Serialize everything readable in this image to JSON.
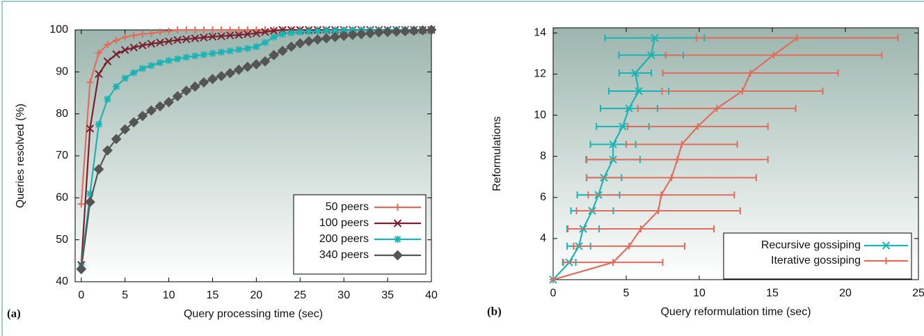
{
  "chart_data": [
    {
      "type": "line",
      "label": "(a)",
      "xlabel": "Query processing time (sec)",
      "ylabel": "Queries resolved (%)",
      "xlim": [
        -0.7,
        40
      ],
      "ylim": [
        40,
        100
      ],
      "xticks": [
        0,
        5,
        10,
        15,
        20,
        25,
        30,
        35,
        40
      ],
      "yticks": [
        40,
        50,
        60,
        70,
        80,
        90,
        100
      ],
      "legend": "lower right",
      "x": [
        0,
        1,
        2,
        3,
        4,
        5,
        6,
        7,
        8,
        9,
        10,
        11,
        12,
        13,
        14,
        15,
        16,
        17,
        18,
        19,
        20,
        21,
        22,
        23,
        24,
        25,
        26,
        27,
        28,
        29,
        30,
        31,
        32,
        33,
        34,
        35,
        36,
        37,
        38,
        39,
        40
      ],
      "series": [
        {
          "name": "50 peers",
          "color": "#e06c5c",
          "marker": "plus",
          "values": [
            58.5,
            87.5,
            94.5,
            96.5,
            97.5,
            98.3,
            98.7,
            99,
            99.2,
            99.5,
            99.7,
            100,
            100,
            100,
            100,
            100,
            100,
            100,
            100,
            100,
            100,
            100,
            100,
            100,
            100,
            100,
            100,
            100,
            100,
            100,
            100,
            100,
            100,
            100,
            100,
            100,
            100,
            100,
            100,
            100,
            100
          ]
        },
        {
          "name": "100 peers",
          "color": "#7a1f2e",
          "marker": "cross",
          "values": [
            44,
            76.5,
            89.5,
            92.5,
            94.2,
            95.2,
            95.8,
            96.3,
            96.7,
            97,
            97.3,
            97.6,
            97.8,
            98,
            98.2,
            98.4,
            98.5,
            98.7,
            98.8,
            99,
            99.2,
            99.5,
            99.8,
            100,
            100,
            100,
            100,
            100,
            100,
            100,
            100,
            100,
            100,
            100,
            100,
            100,
            100,
            100,
            100,
            100,
            100
          ]
        },
        {
          "name": "200 peers",
          "color": "#1ab4b4",
          "marker": "star",
          "values": [
            43.5,
            61,
            77.5,
            83.5,
            86.5,
            88.5,
            89.8,
            90.8,
            91.5,
            92.2,
            92.7,
            93.1,
            93.5,
            93.8,
            94.1,
            94.4,
            94.7,
            95,
            95.3,
            95.6,
            96,
            97,
            98.3,
            99,
            99.3,
            99.5,
            99.6,
            99.7,
            99.8,
            99.8,
            99.9,
            99.9,
            99.9,
            99.9,
            99.9,
            99.9,
            100,
            100,
            100,
            100,
            100
          ]
        },
        {
          "name": "340 peers",
          "color": "#555555",
          "marker": "diamond",
          "values": [
            43,
            59,
            66.8,
            71.3,
            74,
            76.3,
            78,
            79.5,
            80.8,
            81.8,
            82.8,
            84.2,
            85.5,
            86.5,
            87.5,
            88.3,
            89,
            89.7,
            90.5,
            91.2,
            91.8,
            92.5,
            94,
            95,
            96,
            96.8,
            97.3,
            97.7,
            98,
            98.3,
            98.6,
            98.8,
            99,
            99.2,
            99.4,
            99.5,
            99.6,
            99.7,
            99.8,
            99.9,
            100
          ]
        }
      ]
    },
    {
      "type": "line",
      "label": "(b)",
      "xlabel": "Query reformulation time (sec)",
      "ylabel": "Reformulations",
      "xlim": [
        0,
        25
      ],
      "ylim": [
        2,
        14.25
      ],
      "xticks": [
        0,
        5,
        10,
        15,
        20,
        25
      ],
      "yticks": [
        4,
        6,
        8,
        10,
        12,
        14
      ],
      "legend": "lower right",
      "series": [
        {
          "name": "Recursive gossiping",
          "color": "#1ab4b4",
          "marker": "cross",
          "x": [
            0,
            1.1,
            1.76,
            2.05,
            2.67,
            3.1,
            3.48,
            4.1,
            4.1,
            4.76,
            5.19,
            5.86,
            5.62,
            6.71,
            6.95
          ],
          "xerr": [
            0,
            0.45,
            0.8,
            1.1,
            1.45,
            1.45,
            1.2,
            1.85,
            1.55,
            1.8,
            1.95,
            2.05,
            1.1,
            2.2,
            3.4
          ],
          "values": [
            2,
            2.84,
            3.63,
            4.47,
            5.35,
            6.12,
            6.96,
            7.84,
            8.58,
            9.45,
            10.33,
            11.17,
            12.05,
            12.92,
            13.76
          ]
        },
        {
          "name": "Iterative gossiping",
          "color": "#e06c5c",
          "marker": "plus",
          "x": [
            0,
            4.1,
            5.2,
            6,
            7.2,
            7.4,
            8.1,
            8.5,
            8.8,
            9.9,
            11.2,
            12.95,
            13.5,
            15.1,
            16.7
          ],
          "xerr": [
            0,
            3.4,
            3.8,
            5,
            5.6,
            5,
            5.8,
            6.2,
            3.8,
            4.8,
            5.4,
            5.5,
            6,
            7.4,
            6.9
          ],
          "values": [
            2,
            2.84,
            3.63,
            4.47,
            5.35,
            6.12,
            6.96,
            7.84,
            8.58,
            9.45,
            10.33,
            11.17,
            12.05,
            12.92,
            13.76
          ]
        }
      ]
    }
  ]
}
